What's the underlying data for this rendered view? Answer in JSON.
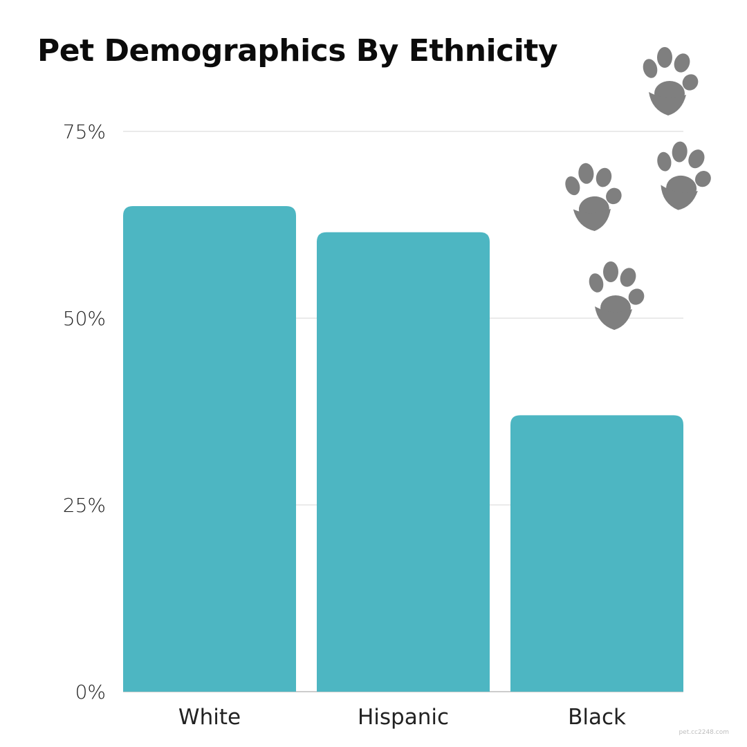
{
  "chart_data": {
    "type": "bar",
    "title": "Pet Demographics By Ethnicity",
    "categories": [
      "White",
      "Hispanic",
      "Black"
    ],
    "values": [
      65,
      61.5,
      37
    ],
    "ylim": [
      0,
      75
    ],
    "yticks": [
      0,
      25,
      50,
      75
    ],
    "ytick_labels": [
      "0%",
      "25%",
      "50%",
      "75%"
    ],
    "xlabel": "",
    "ylabel": "",
    "grid": true,
    "bar_color": "#4db6c2",
    "grid_color": "#dddddd",
    "decoration": "paw-print-icon",
    "decoration_color": "#7f7f7f"
  },
  "watermark": "pet.cc2248.com"
}
